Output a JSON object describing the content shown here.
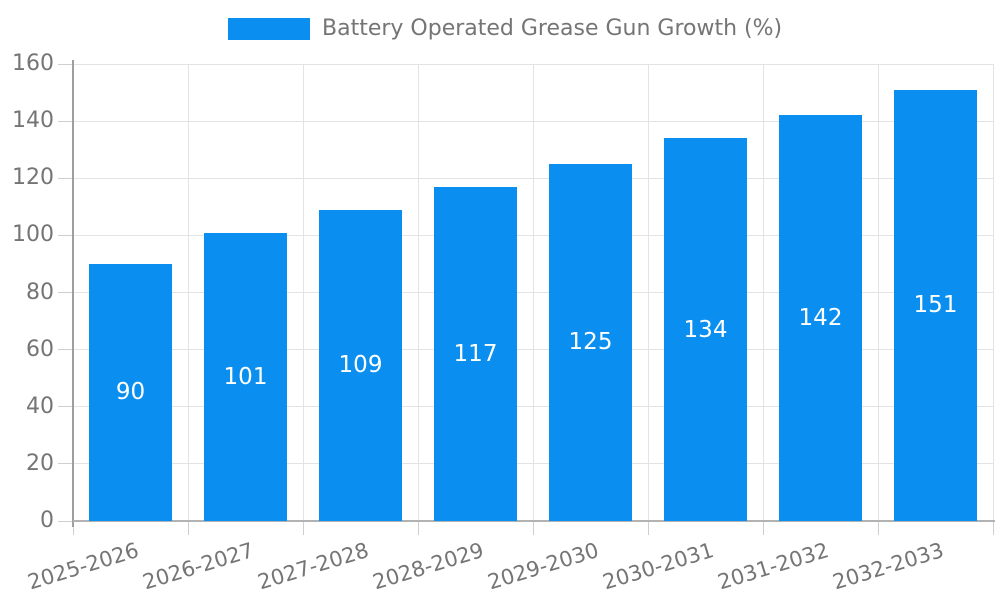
{
  "chart_data": {
    "type": "bar",
    "title": "Battery Operated Grease Gun Growth (%)",
    "categories": [
      "2025-2026",
      "2026-2027",
      "2027-2028",
      "2028-2029",
      "2029-2030",
      "2030-2031",
      "2031-2032",
      "2032-2033"
    ],
    "values": [
      90,
      101,
      109,
      117,
      125,
      134,
      142,
      151
    ],
    "ylim": [
      0,
      160
    ],
    "yticks": [
      0,
      20,
      40,
      60,
      80,
      100,
      120,
      140,
      160
    ],
    "xlabel": "",
    "ylabel": "",
    "grid": true,
    "legend_entries": [
      "Battery Operated Grease Gun Growth (%)"
    ],
    "legend_position": "top-center",
    "bar_color": "#0a8ff0",
    "value_label_color": "#ffffff",
    "axis_text_color": "#757575",
    "grid_color": "#e3e3e3"
  }
}
